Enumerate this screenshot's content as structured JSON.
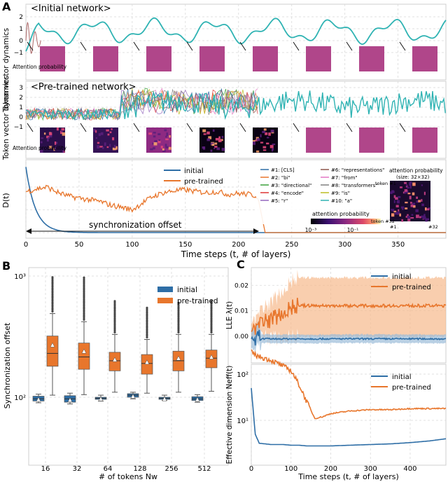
{
  "panel_letters": {
    "a": "A",
    "b": "B",
    "c": "C"
  },
  "panel_a": {
    "top_title": "<Initial network>",
    "mid_title": "<Pre-trained network>",
    "ylabel_dyn": "Token vector dynamics",
    "attn_label": "Attention probability",
    "top_yticks": [
      "2",
      "1",
      "0",
      "−1"
    ],
    "mid_yticks": [
      "3",
      "2",
      "1",
      "0",
      "−1"
    ],
    "xlabel": "Time steps (t, # of layers)",
    "xticks": [
      "0",
      "50",
      "100",
      "150",
      "200",
      "250",
      "300",
      "350"
    ],
    "dt_ylabel": "D(t)",
    "dt_legend": [
      "initial",
      "pre-trained"
    ],
    "sync_label": "synchronization offset",
    "token_legend": [
      "#1: [CLS]",
      "#2: \"bi\"",
      "#3: \"directional\"",
      "#4: \"encode\"",
      "#5: \"r\"",
      "#6: \"representations\"",
      "#7: \"from\"",
      "#8: \"transformers\"",
      "#9: \"is\"",
      "#10: \"a\""
    ],
    "colorbar_label": "attention probability",
    "colorbar_ticks": [
      "10⁻³",
      "10⁻¹"
    ],
    "inset_title": "attention probability",
    "inset_size": "(size: 32×32)",
    "inset_token1": "token #1",
    "inset_token32": "token #32",
    "inset_x1": "#1",
    "inset_x32": "#32"
  },
  "panel_b": {
    "ylabel": "Synchronization offset",
    "xlabel": "# of tokens Nw",
    "xticks": [
      "16",
      "32",
      "64",
      "128",
      "256",
      "512"
    ],
    "yticks": [
      "10³",
      "10²"
    ],
    "legend": [
      "initial",
      "pre-trained"
    ]
  },
  "panel_c": {
    "lle_ylabel": "LLE λ(t)",
    "lle_yticks": [
      "0.02",
      "0.01",
      "0.00"
    ],
    "neff_ylabel": "Effective dimension Neff(t)",
    "neff_yticks": [
      "10²",
      "10¹"
    ],
    "xlabel": "Time steps (t, # of layers)",
    "xticks": [
      "0",
      "100",
      "200",
      "300",
      "400"
    ],
    "legend": [
      "initial",
      "pre-trained"
    ]
  },
  "colors": {
    "initial": "#2e6ea6",
    "pretrained": "#e8762c",
    "teal": "#2fb3b3",
    "grid": "#d9d9d9",
    "attn_uniform": "#b0468a"
  },
  "chart_data": [
    {
      "type": "line",
      "title": "<Initial network>",
      "ylabel": "Token vector dynamics",
      "x": [
        0,
        25,
        50,
        75,
        100,
        125,
        150,
        175,
        200,
        225,
        250,
        275,
        300,
        325,
        350,
        375,
        395
      ],
      "series": [
        {
          "name": "#1: [CLS]",
          "values": [
            -1,
            1.6,
            0.5,
            1.5,
            2.2,
            0.9,
            0.6,
            2.0,
            1.6,
            0.4,
            1.4,
            2.2,
            0.9,
            0.6,
            2.0,
            1.6,
            0.5
          ]
        }
      ],
      "ylim": [
        -1.2,
        2.4
      ]
    },
    {
      "type": "line",
      "title": "<Pre-trained network>",
      "ylabel": "Token vector dynamics",
      "x": [
        0,
        25,
        50,
        75,
        100,
        125,
        150,
        175,
        200,
        225,
        250,
        275,
        300,
        325,
        350,
        375,
        395
      ],
      "series": [
        {
          "name": "#1: [CLS]",
          "values": [
            0.2,
            0.8,
            0.0,
            0.6,
            1.5,
            1.8,
            1.9,
            1.7,
            1.4,
            1.2,
            1.0,
            1.6,
            1.2,
            0.8,
            1.4,
            0.6,
            0.1
          ]
        }
      ],
      "ylim": [
        -1.2,
        3.2
      ]
    },
    {
      "type": "line",
      "ylabel": "D(t)",
      "xlabel": "Time steps (t, # of layers)",
      "x": [
        0,
        10,
        20,
        30,
        40,
        50,
        60,
        70,
        80,
        90,
        100,
        110,
        120,
        130,
        140,
        150,
        160,
        170,
        180,
        190,
        200,
        210,
        218,
        225,
        300,
        395
      ],
      "series": [
        {
          "name": "initial",
          "values": [
            0.7,
            0.3,
            0.08,
            0.02,
            0.005,
            0.002,
            0.001,
            0,
            0,
            0,
            0,
            0,
            0,
            0,
            0,
            0,
            0,
            0,
            0,
            0,
            0,
            0,
            0,
            0,
            0,
            0
          ]
        },
        {
          "name": "pre-trained",
          "values": [
            0.45,
            0.48,
            0.5,
            0.44,
            0.4,
            0.38,
            0.36,
            0.34,
            0.3,
            0.28,
            0.25,
            0.33,
            0.4,
            0.44,
            0.46,
            0.47,
            0.45,
            0.44,
            0.45,
            0.42,
            0.43,
            0.42,
            0.4,
            0.0,
            0.0,
            0.0
          ]
        }
      ],
      "ylim": [
        0,
        0.75
      ],
      "xlim": [
        0,
        395
      ]
    },
    {
      "type": "box",
      "ylabel": "Synchronization offset",
      "xlabel": "# of tokens Nw",
      "categories": [
        "16",
        "32",
        "64",
        "128",
        "256",
        "512"
      ],
      "yscale": "log",
      "series": [
        {
          "name": "initial",
          "boxes": [
            {
              "q1": 93,
              "median": 97,
              "q3": 102,
              "whisker_low": 90,
              "whisker_high": 106,
              "mean": 96
            },
            {
              "q1": 91,
              "median": 97,
              "q3": 103,
              "whisker_low": 88,
              "whisker_high": 108,
              "mean": 95
            },
            {
              "q1": 96,
              "median": 98,
              "q3": 100,
              "whisker_low": 93,
              "whisker_high": 104,
              "mean": 97
            },
            {
              "q1": 100,
              "median": 104,
              "q3": 107,
              "whisker_low": 97,
              "whisker_high": 110,
              "mean": 102
            },
            {
              "q1": 96,
              "median": 98,
              "q3": 100,
              "whisker_low": 94,
              "whisker_high": 104,
              "mean": 97
            },
            {
              "q1": 94,
              "median": 97,
              "q3": 101,
              "whisker_low": 91,
              "whisker_high": 105,
              "mean": 96
            }
          ]
        },
        {
          "name": "pre-trained",
          "boxes": [
            {
              "q1": 180,
              "median": 230,
              "q3": 320,
              "whisker_low": 104,
              "whisker_high": 490,
              "mean": 270,
              "max_outlier": 1000
            },
            {
              "q1": 170,
              "median": 215,
              "q3": 280,
              "whisker_low": 105,
              "whisker_high": 420,
              "mean": 240,
              "max_outlier": 980
            },
            {
              "q1": 165,
              "median": 200,
              "q3": 235,
              "whisker_low": 110,
              "whisker_high": 330,
              "mean": 205,
              "max_outlier": 620
            },
            {
              "q1": 155,
              "median": 190,
              "q3": 225,
              "whisker_low": 108,
              "whisker_high": 300,
              "mean": 195,
              "max_outlier": 560
            },
            {
              "q1": 165,
              "median": 200,
              "q3": 240,
              "whisker_low": 110,
              "whisker_high": 330,
              "mean": 210,
              "max_outlier": 610
            },
            {
              "q1": 175,
              "median": 210,
              "q3": 245,
              "whisker_low": 112,
              "whisker_high": 330,
              "mean": 215,
              "max_outlier": 620
            }
          ]
        }
      ]
    },
    {
      "type": "line",
      "ylabel": "LLE λ(t)",
      "x": [
        0,
        10,
        20,
        30,
        40,
        50,
        60,
        70,
        80,
        90,
        100,
        125,
        150,
        200,
        250,
        300,
        350,
        400,
        490
      ],
      "series": [
        {
          "name": "initial",
          "values": [
            0.0,
            -0.004,
            -0.002,
            -0.001,
            -0.002,
            -0.001,
            -0.001,
            -0.002,
            -0.001,
            -0.001,
            -0.001,
            -0.001,
            -0.001,
            -0.001,
            -0.001,
            -0.001,
            -0.001,
            -0.001,
            -0.001
          ]
        },
        {
          "name": "pre-trained",
          "values": [
            0.002,
            0.006,
            0.004,
            0.008,
            0.005,
            0.009,
            0.006,
            0.01,
            0.008,
            0.011,
            0.01,
            0.012,
            0.012,
            0.013,
            0.012,
            0.013,
            0.012,
            0.013,
            0.012
          ]
        }
      ],
      "ylim": [
        -0.006,
        0.024
      ]
    },
    {
      "type": "line",
      "ylabel": "Effective dimension Neff(t)",
      "xlabel": "Time steps (t, # of layers)",
      "yscale": "log",
      "x": [
        0,
        10,
        20,
        50,
        80,
        100,
        120,
        140,
        160,
        180,
        200,
        250,
        300,
        350,
        400,
        450,
        490
      ],
      "series": [
        {
          "name": "initial",
          "values": [
            50,
            5,
            3.2,
            3.0,
            3.0,
            2.9,
            2.9,
            2.8,
            2.8,
            2.8,
            2.8,
            2.9,
            3.0,
            3.1,
            3.3,
            3.6,
            4.0
          ]
        },
        {
          "name": "pre-trained",
          "values": [
            300,
            260,
            240,
            200,
            150,
            120,
            60,
            25,
            11,
            12,
            14,
            16,
            17,
            17,
            18,
            18,
            18
          ]
        }
      ],
      "xlim": [
        0,
        490
      ]
    }
  ]
}
